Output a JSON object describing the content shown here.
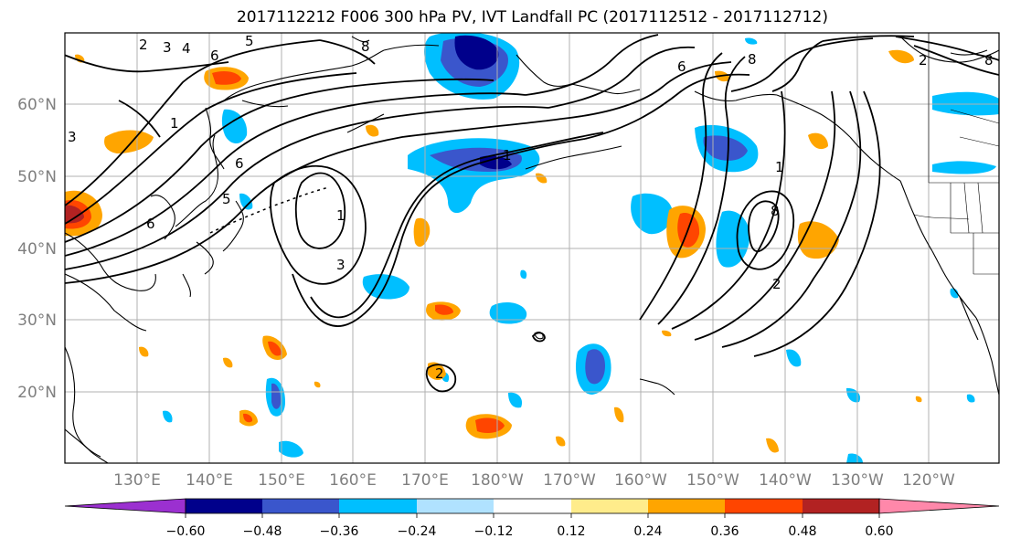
{
  "title": "2017112212 F006 300 hPa PV, IVT Landfall PC (2017112512 - 2017112712)",
  "map": {
    "lon_labels": [
      "130°E",
      "140°E",
      "150°E",
      "160°E",
      "170°E",
      "180°W",
      "170°W",
      "160°W",
      "150°W",
      "140°W",
      "130°W",
      "120°W"
    ],
    "lat_labels": [
      "60°N",
      "50°N",
      "40°N",
      "30°N",
      "20°N"
    ],
    "grid": true,
    "contour_labels": [
      "2",
      "3",
      "4",
      "5",
      "6",
      "8",
      "1",
      "1",
      "6",
      "5",
      "3",
      "1",
      "3",
      "6",
      "8",
      "1",
      "8",
      "2",
      "2",
      "8",
      "6",
      "2"
    ]
  },
  "colorbar": {
    "ticks": [
      "−0.60",
      "−0.48",
      "−0.36",
      "−0.24",
      "−0.12",
      "0.12",
      "0.24",
      "0.36",
      "0.48",
      "0.60"
    ],
    "colors": [
      "#9b30d0",
      "#00008b",
      "#3a56cc",
      "#00bfff",
      "#b0e2ff",
      "#ffffff",
      "#ffec8b",
      "#ffa500",
      "#ff4500",
      "#b22222",
      "#ff88aa"
    ]
  }
}
